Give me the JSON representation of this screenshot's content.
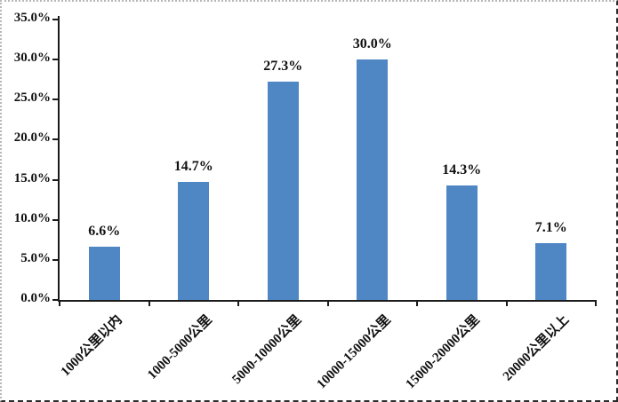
{
  "chart_data": {
    "type": "bar",
    "title": "",
    "xlabel": "",
    "ylabel": "",
    "categories": [
      "1000公里以内",
      "1000-5000公里",
      "5000-10000公里",
      "10000-15000公里",
      "15000-20000公里",
      "20000公里以上"
    ],
    "values": [
      6.6,
      14.7,
      27.3,
      30.0,
      14.3,
      7.1
    ],
    "data_labels": [
      "6.6%",
      "14.7%",
      "27.3%",
      "30.0%",
      "14.3%",
      "7.1%"
    ],
    "ylim": [
      0,
      35
    ],
    "y_tick_values": [
      0,
      5,
      10,
      15,
      20,
      25,
      30,
      35
    ],
    "y_tick_labels": [
      "0.0%",
      "5.0%",
      "10.0%",
      "15.0%",
      "20.0%",
      "25.0%",
      "30.0%",
      "35.0%"
    ],
    "grid": false,
    "legend": null,
    "bar_color": "#4f86c4",
    "axis_color": "#1a1a1a",
    "text_color": "#111111"
  }
}
